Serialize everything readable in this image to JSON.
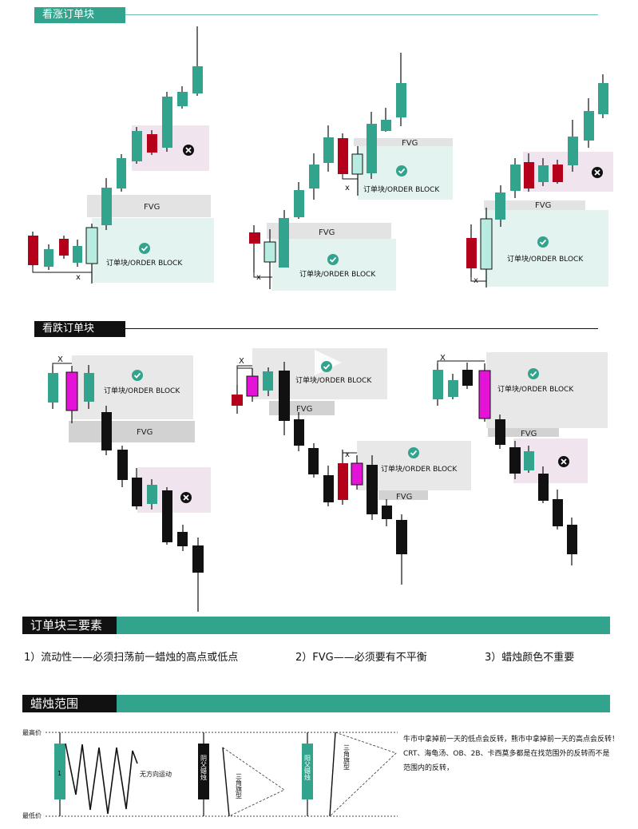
{
  "sections": {
    "bullish_title": "看涨订单块",
    "bearish_title": "看跌订单块",
    "rules_title": "订单块三要素",
    "range_title": "蜡烛范围"
  },
  "labels": {
    "fvg": "FVG",
    "order_block": "订单块/ORDER BLOCK",
    "x": "x",
    "X": "X"
  },
  "rules": [
    "1）流动性——必须扫荡前一蜡烛的高点或低点",
    "2）FVG——必须要有不平衡",
    "3）蜡烛颜色不重要"
  ],
  "range": {
    "max_label": "最高价",
    "min_label": "最低价",
    "candle_num": "1",
    "no_direction": "无方向运动",
    "bear_candle": "阴父蜡烛",
    "bull_candle": "阳父蜡烛",
    "triangle_flag": "三角旗型"
  },
  "notes": [
    "牛市中拿掉前一天的低点会反转，熊市中拿掉前一天的高点会反转！",
    "CRT、海龟汤、OB、2B、卡西莫多都是在找范围外的反转而不是",
    "范围内的反转，"
  ],
  "colors": {
    "teal": "#32a38c",
    "red": "#b4001a",
    "mint": "#b9ece0",
    "magenta": "#e413d7",
    "black": "#111111"
  }
}
